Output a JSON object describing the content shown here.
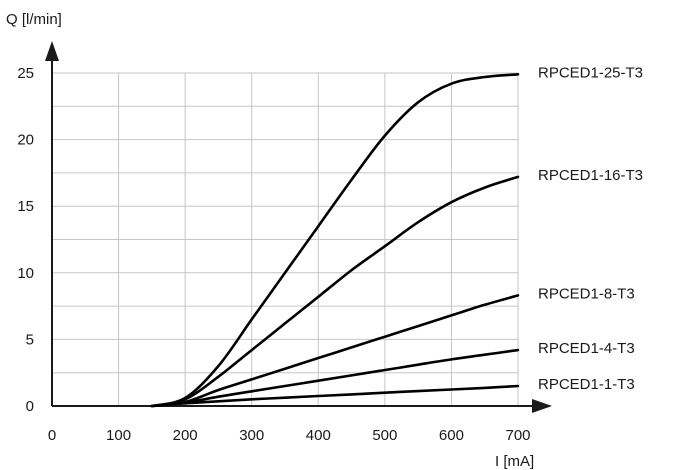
{
  "chart_data": {
    "type": "line",
    "xlabel": "I [mA]",
    "ylabel": "Q [l/min]",
    "xlim": [
      0,
      700
    ],
    "ylim": [
      0,
      25
    ],
    "x_ticks": [
      "0",
      "100",
      "200",
      "300",
      "400",
      "500",
      "600",
      "700"
    ],
    "y_ticks": [
      "0",
      "5",
      "10",
      "15",
      "20",
      "25"
    ],
    "grid": true,
    "legend": "labels at right end of each line",
    "line_color": "#000000",
    "series": [
      {
        "name": "RPCED1-25-T3",
        "x": [
          150,
          200,
          250,
          300,
          350,
          400,
          450,
          500,
          550,
          600,
          650,
          700
        ],
        "y": [
          0,
          0.6,
          3.0,
          6.5,
          10.0,
          13.5,
          17.0,
          20.3,
          22.8,
          24.2,
          24.7,
          24.9
        ]
      },
      {
        "name": "RPCED1-16-T3",
        "x": [
          150,
          200,
          250,
          300,
          350,
          400,
          450,
          500,
          550,
          600,
          650,
          700
        ],
        "y": [
          0,
          0.5,
          2.2,
          4.2,
          6.2,
          8.2,
          10.2,
          12.0,
          13.8,
          15.3,
          16.4,
          17.2
        ]
      },
      {
        "name": "RPCED1-8-T3",
        "x": [
          150,
          200,
          250,
          300,
          350,
          400,
          450,
          500,
          550,
          600,
          650,
          700
        ],
        "y": [
          0,
          0.3,
          1.2,
          2.0,
          2.8,
          3.6,
          4.4,
          5.2,
          6.0,
          6.8,
          7.6,
          8.3
        ]
      },
      {
        "name": "RPCED1-4-T3",
        "x": [
          150,
          200,
          250,
          300,
          350,
          400,
          450,
          500,
          550,
          600,
          650,
          700
        ],
        "y": [
          0,
          0.25,
          0.7,
          1.1,
          1.5,
          1.9,
          2.3,
          2.7,
          3.1,
          3.5,
          3.85,
          4.2
        ]
      },
      {
        "name": "RPCED1-1-T3",
        "x": [
          150,
          200,
          250,
          300,
          350,
          400,
          450,
          500,
          550,
          600,
          650,
          700
        ],
        "y": [
          0,
          0.2,
          0.35,
          0.5,
          0.62,
          0.75,
          0.87,
          1.0,
          1.12,
          1.24,
          1.36,
          1.5
        ]
      }
    ]
  }
}
